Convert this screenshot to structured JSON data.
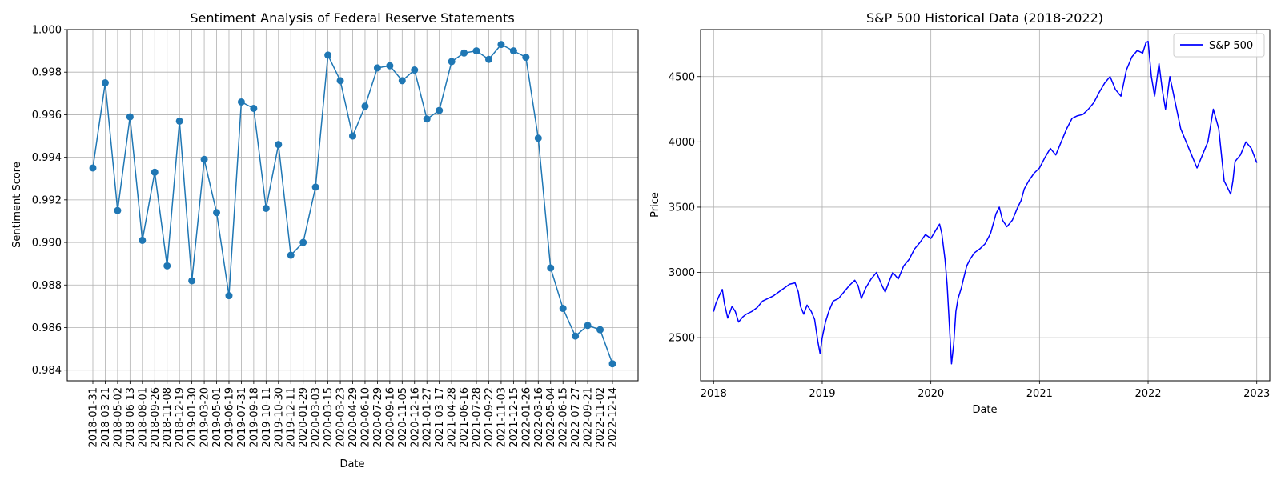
{
  "chart_data": [
    {
      "type": "line",
      "title": "Sentiment Analysis of Federal Reserve Statements",
      "xlabel": "Date",
      "ylabel": "Sentiment Score",
      "ylim": [
        0.9835,
        1.0
      ],
      "yticks": [
        "0.984",
        "0.986",
        "0.988",
        "0.990",
        "0.992",
        "0.994",
        "0.996",
        "0.998",
        "1.000"
      ],
      "grid": true,
      "markers": true,
      "color": "#1f77b4",
      "categories": [
        "2018-01-31",
        "2018-03-21",
        "2018-05-02",
        "2018-06-13",
        "2018-08-01",
        "2018-09-26",
        "2018-11-08",
        "2018-12-19",
        "2019-01-30",
        "2019-03-20",
        "2019-05-01",
        "2019-06-19",
        "2019-07-31",
        "2019-09-18",
        "2019-10-11",
        "2019-10-30",
        "2019-12-11",
        "2020-01-29",
        "2020-03-03",
        "2020-03-15",
        "2020-03-23",
        "2020-04-29",
        "2020-06-10",
        "2020-07-29",
        "2020-09-16",
        "2020-11-05",
        "2020-12-16",
        "2021-01-27",
        "2021-03-17",
        "2021-04-28",
        "2021-06-16",
        "2021-07-28",
        "2021-09-22",
        "2021-11-03",
        "2021-12-15",
        "2022-01-26",
        "2022-03-16",
        "2022-05-04",
        "2022-06-15",
        "2022-07-27",
        "2022-09-21",
        "2022-11-02",
        "2022-12-14"
      ],
      "values": [
        0.9935,
        0.9975,
        0.9915,
        0.9959,
        0.9901,
        0.9933,
        0.9889,
        0.9957,
        0.9882,
        0.9939,
        0.9914,
        0.9875,
        0.9966,
        0.9963,
        0.9916,
        0.9946,
        0.9894,
        0.99,
        0.9926,
        0.9988,
        0.9976,
        0.995,
        0.9964,
        0.9982,
        0.9983,
        0.9976,
        0.9981,
        0.9958,
        0.9962,
        0.9985,
        0.9989,
        0.999,
        0.9986,
        0.9993,
        0.999,
        0.9987,
        0.9949,
        0.9888,
        0.9869,
        0.9856,
        0.9861,
        0.9859,
        0.9843
      ]
    },
    {
      "type": "line",
      "title": "S&P 500 Historical Data (2018-2022)",
      "xlabel": "Date",
      "ylabel": "Price",
      "xlim": [
        2017.88,
        2023.12
      ],
      "ylim": [
        2170,
        4860
      ],
      "xticks": [
        "2018",
        "2019",
        "2020",
        "2021",
        "2022",
        "2023"
      ],
      "yticks": [
        "2500",
        "3000",
        "3500",
        "4000",
        "4500"
      ],
      "grid": true,
      "legend_position": "top-right",
      "series": [
        {
          "name": "S&P 500",
          "color": "#0000ff",
          "x": [
            2018.0,
            2018.02,
            2018.05,
            2018.08,
            2018.1,
            2018.13,
            2018.17,
            2018.2,
            2018.23,
            2018.27,
            2018.3,
            2018.35,
            2018.4,
            2018.45,
            2018.5,
            2018.55,
            2018.6,
            2018.65,
            2018.7,
            2018.75,
            2018.78,
            2018.8,
            2018.83,
            2018.86,
            2018.9,
            2018.93,
            2018.96,
            2018.98,
            2019.0,
            2019.03,
            2019.06,
            2019.1,
            2019.15,
            2019.2,
            2019.25,
            2019.3,
            2019.33,
            2019.36,
            2019.4,
            2019.45,
            2019.5,
            2019.55,
            2019.58,
            2019.62,
            2019.65,
            2019.7,
            2019.75,
            2019.8,
            2019.85,
            2019.9,
            2019.95,
            2020.0,
            2020.05,
            2020.08,
            2020.1,
            2020.13,
            2020.15,
            2020.17,
            2020.19,
            2020.21,
            2020.23,
            2020.25,
            2020.28,
            2020.3,
            2020.33,
            2020.36,
            2020.4,
            2020.45,
            2020.5,
            2020.55,
            2020.6,
            2020.63,
            2020.66,
            2020.7,
            2020.75,
            2020.8,
            2020.83,
            2020.86,
            2020.9,
            2020.95,
            2021.0,
            2021.05,
            2021.1,
            2021.15,
            2021.2,
            2021.25,
            2021.3,
            2021.35,
            2021.4,
            2021.45,
            2021.5,
            2021.55,
            2021.6,
            2021.65,
            2021.7,
            2021.75,
            2021.8,
            2021.85,
            2021.9,
            2021.95,
            2021.98,
            2022.0,
            2022.03,
            2022.06,
            2022.1,
            2022.13,
            2022.16,
            2022.2,
            2022.25,
            2022.3,
            2022.35,
            2022.4,
            2022.45,
            2022.5,
            2022.55,
            2022.6,
            2022.65,
            2022.7,
            2022.73,
            2022.76,
            2022.78,
            2022.8,
            2022.85,
            2022.9,
            2022.95,
            2023.0
          ],
          "values": [
            2700,
            2760,
            2820,
            2870,
            2760,
            2650,
            2740,
            2700,
            2620,
            2660,
            2680,
            2700,
            2730,
            2780,
            2800,
            2820,
            2850,
            2880,
            2910,
            2920,
            2850,
            2740,
            2680,
            2750,
            2700,
            2640,
            2470,
            2380,
            2500,
            2620,
            2700,
            2780,
            2800,
            2850,
            2900,
            2940,
            2900,
            2800,
            2880,
            2950,
            3000,
            2900,
            2850,
            2940,
            3000,
            2950,
            3050,
            3100,
            3180,
            3230,
            3290,
            3260,
            3330,
            3370,
            3300,
            3100,
            2900,
            2600,
            2300,
            2450,
            2700,
            2800,
            2880,
            2950,
            3050,
            3100,
            3150,
            3180,
            3220,
            3300,
            3450,
            3500,
            3400,
            3350,
            3400,
            3500,
            3550,
            3640,
            3700,
            3760,
            3800,
            3880,
            3950,
            3900,
            4000,
            4100,
            4180,
            4200,
            4210,
            4250,
            4300,
            4380,
            4450,
            4500,
            4400,
            4350,
            4550,
            4650,
            4700,
            4680,
            4760,
            4770,
            4500,
            4350,
            4600,
            4400,
            4250,
            4500,
            4300,
            4100,
            4000,
            3900,
            3800,
            3900,
            4000,
            4250,
            4100,
            3700,
            3650,
            3600,
            3700,
            3850,
            3900,
            4000,
            3950,
            3840
          ]
        }
      ]
    }
  ]
}
